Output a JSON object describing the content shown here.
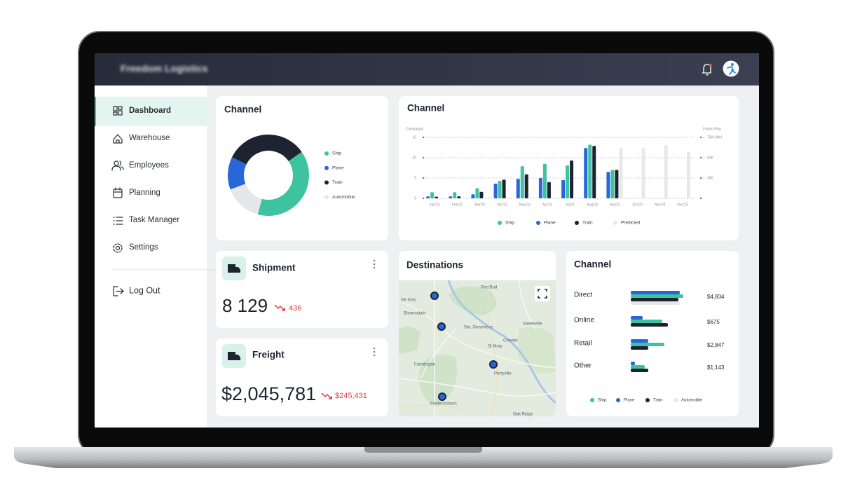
{
  "header": {
    "title": "Freedom Logistics"
  },
  "sidebar": {
    "items": [
      "Dashboard",
      "Warehouse",
      "Employees",
      "Planning",
      "Task Manager",
      "Settings"
    ],
    "logout": "Log Out"
  },
  "kpis": [
    {
      "title": "Shipment",
      "value": "8 129",
      "change": "436"
    },
    {
      "title": "Freight",
      "value": "$2,045,781",
      "change": "$245,431"
    }
  ],
  "map": {
    "title": "Destinations",
    "places": [
      "Red Bud",
      "De Soto",
      "Bloomsdale",
      "Ste. Genevieve",
      "Steeleville",
      "St Mary",
      "Chester",
      "Farmington",
      "Perryville",
      "Fredericktown",
      "Oak Ridge"
    ]
  },
  "chart_data": [
    {
      "type": "pie",
      "title": "Channel",
      "donut": true,
      "categories": [
        "Ship",
        "Plane",
        "Train",
        "Automobile"
      ],
      "values": [
        39,
        13,
        33,
        15
      ],
      "colors": [
        "#3ec3a0",
        "#2767d8",
        "#1d2330",
        "#e6e7e9"
      ]
    },
    {
      "type": "bar",
      "title": "Channel",
      "y_label": "Campaigns",
      "y2_label": "Funds Flow",
      "categories": [
        "Jan'23",
        "Feb'23",
        "Mar'23",
        "Apr'23",
        "May'23",
        "Jun'23",
        "Jul'23",
        "Aug'23",
        "Sep'23",
        "Oct'23",
        "Nov'23",
        "Dec'23"
      ],
      "series": [
        {
          "name": "Ship",
          "color": "#3ec3a0",
          "values": [
            1.5,
            1.5,
            2.5,
            4.3,
            7.9,
            8.5,
            8.1,
            13.2,
            7,
            null,
            null,
            null
          ]
        },
        {
          "name": "Plane",
          "color": "#2767d8",
          "values": [
            0.5,
            0.5,
            1,
            3.6,
            4.8,
            5,
            4.5,
            12.4,
            6.5,
            null,
            null,
            null
          ]
        },
        {
          "name": "Train",
          "color": "#1d2330",
          "values": [
            0.4,
            0.5,
            1.6,
            4.6,
            5.9,
            4,
            9.3,
            12.9,
            7,
            null,
            null,
            null
          ]
        },
        {
          "name": "Predicted",
          "color": "#e8e8ea",
          "values": [
            null,
            null,
            null,
            null,
            null,
            null,
            null,
            null,
            12.4,
            12.3,
            13.1,
            11.5
          ]
        }
      ],
      "ylim": [
        0,
        15
      ],
      "yticks": [
        0,
        5,
        10,
        15
      ],
      "y2lim": [
        0,
        75000
      ],
      "y2ticks": [
        {
          "value": 25000,
          "label": "25K"
        },
        {
          "value": 50000,
          "label": "50K"
        },
        {
          "value": 75000,
          "label": "75K UAH"
        }
      ],
      "grid": true
    },
    {
      "type": "hbar",
      "title": "Channel",
      "categories": [
        "Direct",
        "Online",
        "Retail",
        "Other"
      ],
      "series": [
        {
          "name": "Ship",
          "color": "#3ec3a0",
          "values": [
            75,
            45,
            48,
            20
          ]
        },
        {
          "name": "Plane",
          "color": "#2767d8",
          "values": [
            70,
            17,
            25,
            6
          ]
        },
        {
          "name": "Train",
          "color": "#1d2330",
          "values": [
            68,
            53,
            25,
            25
          ]
        },
        {
          "name": "Automobile",
          "color": "#e6e7e9",
          "values": [
            70,
            null,
            null,
            null
          ]
        }
      ],
      "xlim": [
        0,
        80
      ],
      "totals": [
        4834,
        675,
        2847,
        1143
      ],
      "totals_labels": [
        "$4,834",
        "$675",
        "$2,847",
        "$1,143"
      ]
    }
  ]
}
